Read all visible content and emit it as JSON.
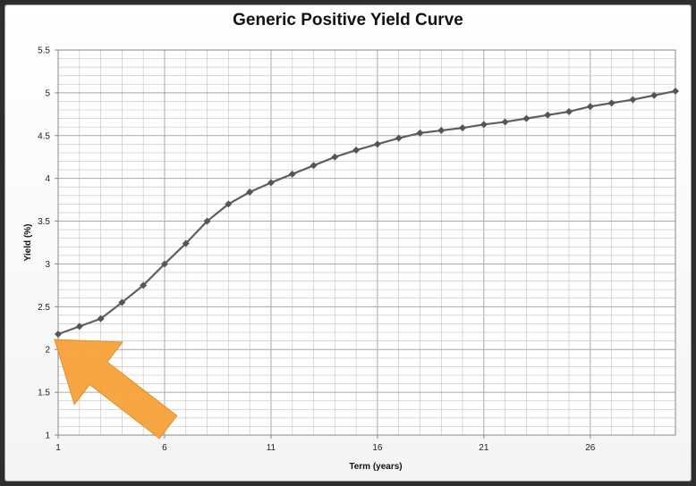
{
  "chart_data": {
    "type": "line",
    "title": "Generic Positive Yield Curve",
    "xlabel": "Term (years)",
    "ylabel": "Yield (%)",
    "xlim": [
      1,
      30
    ],
    "ylim": [
      1,
      5.5
    ],
    "x_ticks": [
      1,
      6,
      11,
      16,
      21,
      26
    ],
    "y_ticks": [
      1,
      1.5,
      2,
      2.5,
      3,
      3.5,
      4,
      4.5,
      5,
      5.5
    ],
    "grid": true,
    "series": [
      {
        "x": [
          1,
          2,
          3,
          4,
          5,
          6,
          7,
          8,
          9,
          10,
          11,
          12,
          13,
          14,
          15,
          16,
          17,
          18,
          19,
          20,
          21,
          22,
          23,
          24,
          25,
          26,
          27,
          28,
          29,
          30
        ],
        "y": [
          2.18,
          2.27,
          2.36,
          2.55,
          2.75,
          3.0,
          3.24,
          3.5,
          3.7,
          3.84,
          3.95,
          4.05,
          4.15,
          4.25,
          4.33,
          4.4,
          4.47,
          4.53,
          4.56,
          4.59,
          4.63,
          4.66,
          4.7,
          4.74,
          4.78,
          4.84,
          4.88,
          4.92,
          4.97,
          5.02
        ]
      }
    ],
    "annotation": {
      "type": "arrow",
      "color": "#f7a23a",
      "points_to": {
        "x": 1,
        "y": 2.18
      }
    }
  },
  "colors": {
    "series": "#5f5f5f",
    "grid": "#c8c8c8",
    "arrow": "#f7a23a"
  }
}
